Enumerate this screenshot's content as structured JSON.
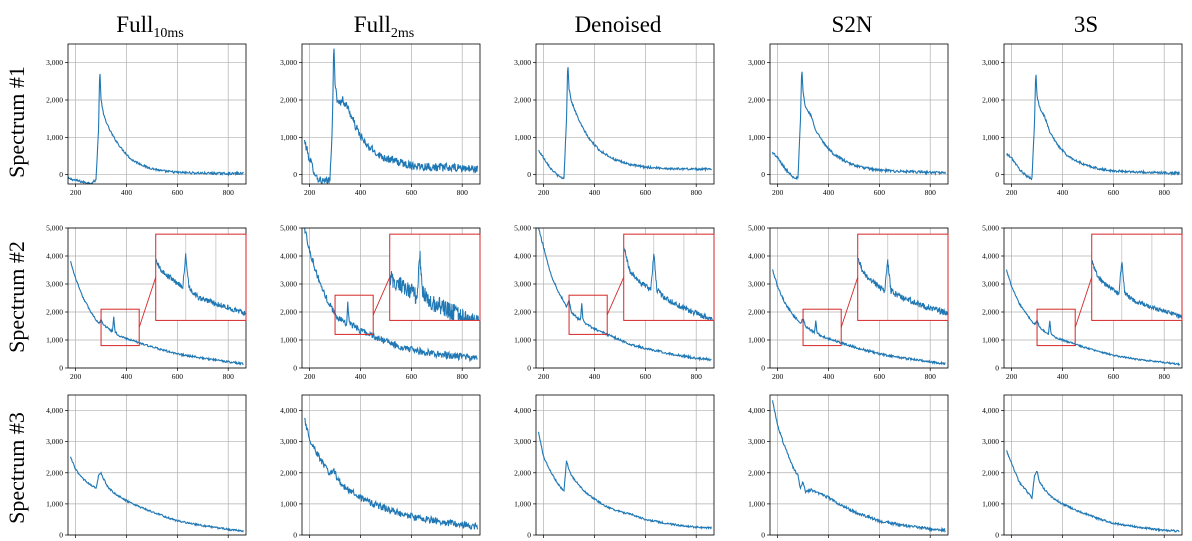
{
  "figure": {
    "columns": [
      {
        "base": "Full",
        "sub": "10ms"
      },
      {
        "base": "Full",
        "sub": "2ms"
      },
      {
        "base": "Denoised",
        "sub": ""
      },
      {
        "base": "S2N",
        "sub": ""
      },
      {
        "base": "3S",
        "sub": ""
      }
    ],
    "rows": [
      "Spectrum #1",
      "Spectrum #2",
      "Spectrum #3"
    ]
  },
  "colors": {
    "line": "#1f77b4",
    "grid": "#b0b0b0",
    "inset": "#d62728"
  },
  "chart_data": [
    {
      "type": "line",
      "row": 1,
      "column": "Full10ms",
      "xlim": [
        170,
        870
      ],
      "ylim": [
        -250,
        3500
      ],
      "yticks": [
        0,
        1000,
        2000,
        3000
      ],
      "ytick_labels": [
        "0",
        "1,000",
        "2,000",
        "3,000"
      ],
      "xticks": [
        200,
        400,
        600,
        800
      ],
      "x": [
        170,
        200,
        230,
        260,
        280,
        290,
        295,
        300,
        310,
        330,
        350,
        380,
        420,
        480,
        540,
        600,
        700,
        800,
        860
      ],
      "y": [
        -100,
        -150,
        -200,
        -230,
        -150,
        1200,
        2850,
        2000,
        1600,
        1250,
        1000,
        700,
        400,
        200,
        100,
        60,
        40,
        30,
        30
      ],
      "noise": 30,
      "grid": true
    },
    {
      "type": "line",
      "row": 1,
      "column": "Full2ms",
      "xlim": [
        170,
        870
      ],
      "ylim": [
        -250,
        3500
      ],
      "yticks": [
        0,
        1000,
        2000,
        3000
      ],
      "ytick_labels": [
        "0",
        "1,000",
        "2,000",
        "3,000"
      ],
      "xticks": [
        200,
        400,
        600,
        800
      ],
      "x": [
        180,
        200,
        230,
        260,
        280,
        290,
        295,
        300,
        310,
        330,
        350,
        380,
        420,
        480,
        540,
        600,
        700,
        800,
        860
      ],
      "y": [
        900,
        400,
        -100,
        -200,
        -150,
        1500,
        3500,
        2500,
        1900,
        2000,
        1800,
        1300,
        800,
        500,
        350,
        250,
        200,
        170,
        150
      ],
      "noise": 110,
      "grid": true
    },
    {
      "type": "line",
      "row": 1,
      "column": "Denoised",
      "xlim": [
        170,
        870
      ],
      "ylim": [
        -250,
        3500
      ],
      "yticks": [
        0,
        1000,
        2000,
        3000
      ],
      "ytick_labels": [
        "0",
        "1,000",
        "2,000",
        "3,000"
      ],
      "xticks": [
        200,
        400,
        600,
        800
      ],
      "x": [
        180,
        200,
        230,
        260,
        280,
        290,
        295,
        300,
        310,
        330,
        350,
        380,
        420,
        480,
        540,
        600,
        700,
        800,
        860
      ],
      "y": [
        650,
        450,
        150,
        -50,
        -100,
        1500,
        3050,
        2300,
        1950,
        1600,
        1300,
        950,
        650,
        400,
        270,
        200,
        160,
        150,
        150
      ],
      "noise": 30,
      "grid": true
    },
    {
      "type": "line",
      "row": 1,
      "column": "S2N",
      "xlim": [
        170,
        870
      ],
      "ylim": [
        -250,
        3500
      ],
      "yticks": [
        0,
        1000,
        2000,
        3000
      ],
      "ytick_labels": [
        "0",
        "1,000",
        "2,000",
        "3,000"
      ],
      "xticks": [
        200,
        400,
        600,
        800
      ],
      "x": [
        180,
        200,
        230,
        260,
        280,
        290,
        295,
        300,
        310,
        330,
        350,
        380,
        420,
        480,
        540,
        600,
        700,
        800,
        860
      ],
      "y": [
        600,
        450,
        150,
        -50,
        -100,
        1500,
        2900,
        2200,
        1800,
        1600,
        1200,
        850,
        550,
        300,
        180,
        120,
        80,
        60,
        50
      ],
      "noise": 35,
      "grid": true
    },
    {
      "type": "line",
      "row": 1,
      "column": "3S",
      "xlim": [
        170,
        870
      ],
      "ylim": [
        -250,
        3500
      ],
      "yticks": [
        0,
        1000,
        2000,
        3000
      ],
      "ytick_labels": [
        "0",
        "1,000",
        "2,000",
        "3,000"
      ],
      "xticks": [
        200,
        400,
        600,
        800
      ],
      "x": [
        180,
        200,
        230,
        260,
        280,
        290,
        295,
        300,
        310,
        330,
        350,
        380,
        420,
        480,
        540,
        600,
        700,
        800,
        860
      ],
      "y": [
        550,
        450,
        150,
        -50,
        -100,
        1400,
        2800,
        2100,
        1800,
        1550,
        1150,
        800,
        500,
        280,
        160,
        100,
        70,
        50,
        40
      ],
      "noise": 30,
      "grid": true
    },
    {
      "type": "line",
      "row": 2,
      "column": "Full10ms",
      "xlim": [
        170,
        870
      ],
      "ylim": [
        0,
        5000
      ],
      "yticks": [
        0,
        1000,
        2000,
        3000,
        4000,
        5000
      ],
      "ytick_labels": [
        "0",
        "1,000",
        "2,000",
        "3,000",
        "4,000",
        "5,000"
      ],
      "xticks": [
        200,
        400,
        600,
        800
      ],
      "x": [
        180,
        200,
        230,
        260,
        290,
        300,
        310,
        330,
        345,
        350,
        355,
        370,
        400,
        450,
        500,
        540,
        600,
        700,
        800,
        860
      ],
      "y": [
        3800,
        3200,
        2500,
        2000,
        1600,
        1700,
        1550,
        1400,
        1300,
        1800,
        1300,
        1150,
        1050,
        900,
        750,
        650,
        500,
        350,
        220,
        150
      ],
      "noise": 35,
      "grid": true,
      "inset_box": {
        "x": [
          300,
          450
        ],
        "y": [
          800,
          2100
        ]
      }
    },
    {
      "type": "line",
      "row": 2,
      "column": "Full2ms",
      "xlim": [
        170,
        870
      ],
      "ylim": [
        0,
        5000
      ],
      "yticks": [
        0,
        1000,
        2000,
        3000,
        4000,
        5000
      ],
      "ytick_labels": [
        "0",
        "1,000",
        "2,000",
        "3,000",
        "4,000",
        "5,000"
      ],
      "xticks": [
        200,
        400,
        600,
        800
      ],
      "x": [
        180,
        200,
        230,
        260,
        290,
        300,
        310,
        330,
        345,
        350,
        355,
        370,
        400,
        450,
        500,
        540,
        600,
        700,
        800,
        860
      ],
      "y": [
        5000,
        4200,
        3300,
        2600,
        2100,
        1900,
        1800,
        1700,
        1600,
        2300,
        1650,
        1500,
        1350,
        1150,
        950,
        800,
        650,
        500,
        400,
        350
      ],
      "noise": 120,
      "grid": true,
      "inset_box": {
        "x": [
          300,
          450
        ],
        "y": [
          1200,
          2600
        ]
      }
    },
    {
      "type": "line",
      "row": 2,
      "column": "Denoised",
      "xlim": [
        170,
        870
      ],
      "ylim": [
        0,
        5000
      ],
      "yticks": [
        0,
        1000,
        2000,
        3000,
        4000,
        5000
      ],
      "ytick_labels": [
        "0",
        "1,000",
        "2,000",
        "3,000",
        "4,000",
        "5,000"
      ],
      "xticks": [
        200,
        400,
        600,
        800
      ],
      "x": [
        180,
        200,
        230,
        260,
        290,
        300,
        310,
        330,
        345,
        350,
        355,
        370,
        400,
        450,
        500,
        540,
        600,
        700,
        800,
        860
      ],
      "y": [
        5000,
        4300,
        3300,
        2700,
        2200,
        2400,
        2000,
        1800,
        1700,
        2300,
        1700,
        1550,
        1400,
        1200,
        1000,
        850,
        700,
        500,
        350,
        300
      ],
      "noise": 40,
      "grid": true,
      "inset_box": {
        "x": [
          300,
          450
        ],
        "y": [
          1200,
          2600
        ]
      }
    },
    {
      "type": "line",
      "row": 2,
      "column": "S2N",
      "xlim": [
        170,
        870
      ],
      "ylim": [
        0,
        5000
      ],
      "yticks": [
        0,
        1000,
        2000,
        3000,
        4000,
        5000
      ],
      "ytick_labels": [
        "0",
        "1,000",
        "2,000",
        "3,000",
        "4,000",
        "5,000"
      ],
      "xticks": [
        200,
        400,
        600,
        800
      ],
      "x": [
        180,
        200,
        230,
        260,
        290,
        300,
        310,
        330,
        345,
        350,
        355,
        370,
        400,
        450,
        500,
        540,
        600,
        700,
        800,
        860
      ],
      "y": [
        3500,
        2900,
        2300,
        1900,
        1600,
        1750,
        1500,
        1350,
        1250,
        1700,
        1250,
        1150,
        1050,
        900,
        750,
        650,
        500,
        350,
        220,
        150
      ],
      "noise": 40,
      "grid": true,
      "inset_box": {
        "x": [
          300,
          450
        ],
        "y": [
          800,
          2100
        ]
      }
    },
    {
      "type": "line",
      "row": 2,
      "column": "3S",
      "xlim": [
        170,
        870
      ],
      "ylim": [
        0,
        5000
      ],
      "yticks": [
        0,
        1000,
        2000,
        3000,
        4000,
        5000
      ],
      "ytick_labels": [
        "0",
        "1,000",
        "2,000",
        "3,000",
        "4,000",
        "5,000"
      ],
      "xticks": [
        200,
        400,
        600,
        800
      ],
      "x": [
        180,
        200,
        230,
        260,
        290,
        300,
        310,
        330,
        345,
        350,
        355,
        370,
        400,
        450,
        500,
        540,
        600,
        700,
        800,
        860
      ],
      "y": [
        3500,
        2900,
        2300,
        1900,
        1550,
        1700,
        1450,
        1300,
        1200,
        1700,
        1200,
        1100,
        1000,
        850,
        700,
        600,
        450,
        300,
        200,
        130
      ],
      "noise": 30,
      "grid": true,
      "inset_box": {
        "x": [
          300,
          450
        ],
        "y": [
          800,
          2100
        ]
      }
    },
    {
      "type": "line",
      "row": 3,
      "column": "Full10ms",
      "xlim": [
        170,
        870
      ],
      "ylim": [
        0,
        4500
      ],
      "yticks": [
        0,
        1000,
        2000,
        3000,
        4000
      ],
      "ytick_labels": [
        "0",
        "1,000",
        "2,000",
        "3,000",
        "4,000"
      ],
      "xticks": [
        200,
        400,
        600,
        800
      ],
      "x": [
        180,
        200,
        230,
        260,
        280,
        290,
        300,
        310,
        330,
        360,
        400,
        450,
        500,
        550,
        600,
        700,
        800,
        860
      ],
      "y": [
        2500,
        2100,
        1800,
        1600,
        1500,
        1900,
        2000,
        1800,
        1500,
        1300,
        1100,
        900,
        750,
        600,
        450,
        300,
        180,
        120
      ],
      "noise": 30,
      "grid": true
    },
    {
      "type": "line",
      "row": 3,
      "column": "Full2ms",
      "xlim": [
        170,
        870
      ],
      "ylim": [
        0,
        4500
      ],
      "yticks": [
        0,
        1000,
        2000,
        3000,
        4000
      ],
      "ytick_labels": [
        "0",
        "1,000",
        "2,000",
        "3,000",
        "4,000"
      ],
      "xticks": [
        200,
        400,
        600,
        800
      ],
      "x": [
        180,
        200,
        230,
        260,
        280,
        290,
        300,
        310,
        330,
        360,
        400,
        450,
        500,
        550,
        600,
        700,
        800,
        860
      ],
      "y": [
        3700,
        3100,
        2600,
        2200,
        1900,
        2100,
        2000,
        1800,
        1600,
        1400,
        1200,
        1000,
        850,
        700,
        600,
        450,
        330,
        280
      ],
      "noise": 110,
      "grid": true
    },
    {
      "type": "line",
      "row": 3,
      "column": "Denoised",
      "xlim": [
        170,
        870
      ],
      "ylim": [
        0,
        4500
      ],
      "yticks": [
        0,
        1000,
        2000,
        3000,
        4000
      ],
      "ytick_labels": [
        "0",
        "1,000",
        "2,000",
        "3,000",
        "4,000"
      ],
      "xticks": [
        200,
        400,
        600,
        800
      ],
      "x": [
        180,
        200,
        230,
        260,
        280,
        290,
        300,
        310,
        330,
        360,
        400,
        450,
        500,
        550,
        600,
        700,
        800,
        860
      ],
      "y": [
        3300,
        2500,
        2000,
        1600,
        1400,
        2400,
        2100,
        1900,
        1700,
        1400,
        1150,
        900,
        750,
        650,
        500,
        350,
        250,
        230
      ],
      "noise": 30,
      "grid": true
    },
    {
      "type": "line",
      "row": 3,
      "column": "S2N",
      "xlim": [
        170,
        870
      ],
      "ylim": [
        0,
        4500
      ],
      "yticks": [
        0,
        1000,
        2000,
        3000,
        4000
      ],
      "ytick_labels": [
        "0",
        "1,000",
        "2,000",
        "3,000",
        "4,000"
      ],
      "xticks": [
        200,
        400,
        600,
        800
      ],
      "x": [
        180,
        200,
        230,
        260,
        280,
        290,
        300,
        310,
        330,
        360,
        400,
        450,
        500,
        550,
        600,
        700,
        800,
        860
      ],
      "y": [
        4300,
        3500,
        2800,
        2200,
        1900,
        1500,
        1700,
        1400,
        1450,
        1350,
        1200,
        950,
        750,
        600,
        450,
        300,
        200,
        150
      ],
      "noise": 45,
      "grid": true
    },
    {
      "type": "line",
      "row": 3,
      "column": "3S",
      "xlim": [
        170,
        870
      ],
      "ylim": [
        0,
        4500
      ],
      "yticks": [
        0,
        1000,
        2000,
        3000,
        4000
      ],
      "ytick_labels": [
        "0",
        "1,000",
        "2,000",
        "3,000",
        "4,000"
      ],
      "xticks": [
        200,
        400,
        600,
        800
      ],
      "x": [
        180,
        200,
        230,
        260,
        280,
        290,
        300,
        310,
        330,
        360,
        400,
        450,
        500,
        550,
        600,
        700,
        800,
        860
      ],
      "y": [
        2700,
        2300,
        1700,
        1400,
        1200,
        1900,
        2050,
        1700,
        1450,
        1200,
        1000,
        800,
        650,
        500,
        380,
        250,
        150,
        120
      ],
      "noise": 30,
      "grid": true
    }
  ]
}
